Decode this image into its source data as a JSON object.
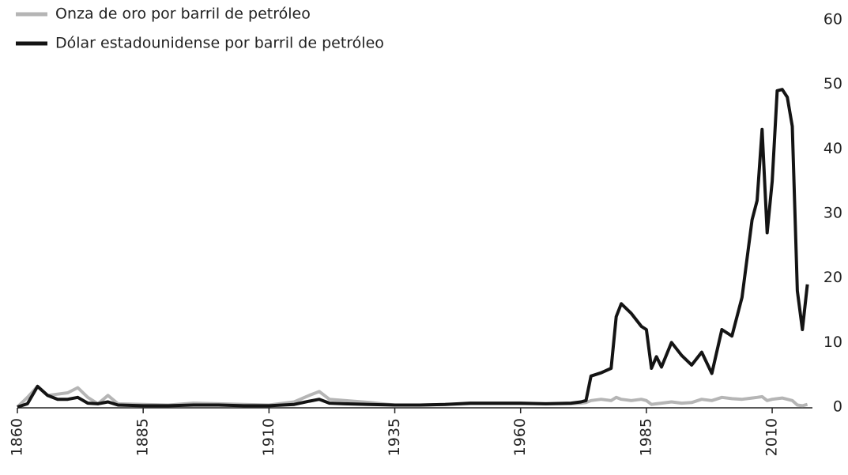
{
  "chart_data": {
    "type": "line",
    "x": [
      1860,
      1862,
      1864,
      1866,
      1868,
      1870,
      1872,
      1874,
      1876,
      1878,
      1880,
      1885,
      1890,
      1895,
      1900,
      1905,
      1910,
      1915,
      1918,
      1920,
      1922,
      1925,
      1930,
      1935,
      1940,
      1945,
      1950,
      1955,
      1960,
      1965,
      1970,
      1972,
      1973,
      1974,
      1976,
      1978,
      1979,
      1980,
      1982,
      1984,
      1985,
      1986,
      1987,
      1988,
      1990,
      1992,
      1994,
      1996,
      1998,
      2000,
      2002,
      2004,
      2006,
      2007,
      2008,
      2009,
      2010,
      2011,
      2012,
      2013,
      2014,
      2015,
      2016,
      2017
    ],
    "series": [
      {
        "name": "Onza de oro por barril de petróleo",
        "color": "#b5b5b5",
        "values": [
          0,
          1.5,
          3.2,
          1.8,
          2.0,
          2.2,
          3.0,
          1.5,
          0.5,
          1.8,
          0.5,
          0.4,
          0.3,
          0.6,
          0.5,
          0.4,
          0.3,
          0.8,
          1.8,
          2.4,
          1.2,
          1.0,
          0.7,
          0.3,
          0.3,
          0.4,
          0.5,
          0.5,
          0.5,
          0.5,
          0.5,
          0.6,
          0.7,
          1.0,
          1.2,
          1.0,
          1.5,
          1.2,
          1.0,
          1.2,
          1.0,
          0.4,
          0.5,
          0.6,
          0.8,
          0.6,
          0.7,
          1.2,
          1.0,
          1.5,
          1.3,
          1.2,
          1.4,
          1.5,
          1.6,
          1.0,
          1.2,
          1.3,
          1.4,
          1.2,
          1.0,
          0.3,
          0.2,
          0.4
        ]
      },
      {
        "name": "Dólar estadounidense por barril de petróleo",
        "color": "#141414",
        "values": [
          0,
          0.5,
          3.2,
          1.8,
          1.2,
          1.2,
          1.5,
          0.6,
          0.5,
          0.8,
          0.3,
          0.2,
          0.2,
          0.3,
          0.3,
          0.2,
          0.2,
          0.4,
          0.9,
          1.2,
          0.6,
          0.5,
          0.4,
          0.3,
          0.3,
          0.4,
          0.6,
          0.6,
          0.6,
          0.5,
          0.6,
          0.8,
          1.0,
          4.8,
          5.3,
          6.0,
          14,
          16,
          14.5,
          12.5,
          12,
          6,
          7.8,
          6.2,
          10,
          8,
          6.5,
          8.5,
          5.2,
          12,
          11,
          17,
          29,
          32,
          43,
          27,
          35,
          49,
          49.2,
          48,
          43.5,
          18,
          12,
          19
        ]
      }
    ],
    "xlim": [
      1860,
      2018
    ],
    "xticks": [
      1860,
      1885,
      1910,
      1935,
      1960,
      1985,
      2010
    ],
    "ylim": [
      0,
      60
    ],
    "yticks": [
      0,
      10,
      20,
      30,
      40,
      50,
      60
    ],
    "y_axis_side": "right"
  }
}
